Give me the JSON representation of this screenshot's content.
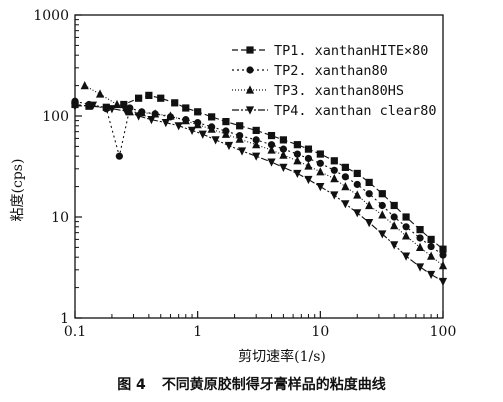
{
  "chart_data": {
    "type": "line",
    "xscale": "log",
    "yscale": "log",
    "xlim": [
      0.1,
      100
    ],
    "ylim": [
      1,
      1000
    ],
    "xticks": [
      "0.1",
      "1",
      "10",
      "100"
    ],
    "yticks": [
      "1",
      "10",
      "100",
      "1000"
    ],
    "xlabel": "剪切速率(1/s)",
    "ylabel": "粘度(cps)",
    "grid": false,
    "legend_position": "top-right",
    "series": [
      {
        "name": "TP1. xanthanHITE×80",
        "marker": "square",
        "x": [
          0.1,
          0.13,
          0.18,
          0.25,
          0.33,
          0.4,
          0.5,
          0.65,
          0.8,
          1,
          1.3,
          1.7,
          2.2,
          3,
          4,
          5,
          6.5,
          8,
          10,
          13,
          16,
          20,
          25,
          32,
          40,
          50,
          65,
          80,
          100
        ],
        "y": [
          130,
          125,
          122,
          130,
          150,
          160,
          150,
          135,
          120,
          110,
          98,
          88,
          80,
          72,
          64,
          58,
          52,
          47,
          42,
          36,
          31,
          27,
          22,
          17,
          13,
          10,
          7.5,
          6,
          4.8
        ]
      },
      {
        "name": "TP2. xanthan80",
        "marker": "circle",
        "x": [
          0.1,
          0.13,
          0.18,
          0.23,
          0.28,
          0.35,
          0.45,
          0.6,
          0.8,
          1,
          1.3,
          1.7,
          2.2,
          3,
          4,
          5,
          6.5,
          8,
          10,
          13,
          16,
          20,
          25,
          32,
          40,
          50,
          65,
          80,
          100
        ],
        "y": [
          140,
          130,
          118,
          40,
          120,
          110,
          105,
          98,
          92,
          86,
          78,
          71,
          64,
          58,
          52,
          47,
          42,
          38,
          34,
          29,
          25,
          21,
          17,
          13,
          10,
          8,
          6.2,
          5.1,
          4.2
        ]
      },
      {
        "name": "TP3. xanthan80HS",
        "marker": "triangle-up",
        "x": [
          0.12,
          0.16,
          0.22,
          0.28,
          0.35,
          0.45,
          0.6,
          0.8,
          1,
          1.3,
          1.7,
          2.2,
          3,
          4,
          5,
          6.5,
          8,
          10,
          13,
          16,
          20,
          25,
          32,
          40,
          50,
          65,
          80,
          100
        ],
        "y": [
          200,
          165,
          130,
          110,
          108,
          105,
          100,
          90,
          82,
          74,
          66,
          59,
          52,
          46,
          41,
          36,
          32,
          28,
          24,
          20,
          16.5,
          13,
          10.5,
          8.2,
          6.5,
          5,
          4.1,
          3.3
        ]
      },
      {
        "name": "TP4. xanthan clear80",
        "marker": "triangle-down",
        "x": [
          0.1,
          0.14,
          0.2,
          0.26,
          0.33,
          0.42,
          0.55,
          0.7,
          0.9,
          1.1,
          1.4,
          1.8,
          2.3,
          3,
          4,
          5,
          6.5,
          8,
          10,
          13,
          16,
          20,
          25,
          32,
          40,
          50,
          65,
          80,
          100
        ],
        "y": [
          125,
          128,
          118,
          112,
          100,
          92,
          86,
          80,
          72,
          66,
          58,
          51,
          45,
          40,
          35,
          31,
          27,
          23.5,
          20,
          16.5,
          13.5,
          11,
          8.8,
          6.8,
          5.3,
          4.1,
          3.2,
          2.7,
          2.3
        ]
      }
    ]
  },
  "caption": {
    "fig_number": "图 4",
    "text": "不同黄原胶制得牙膏样品的粘度曲线"
  }
}
